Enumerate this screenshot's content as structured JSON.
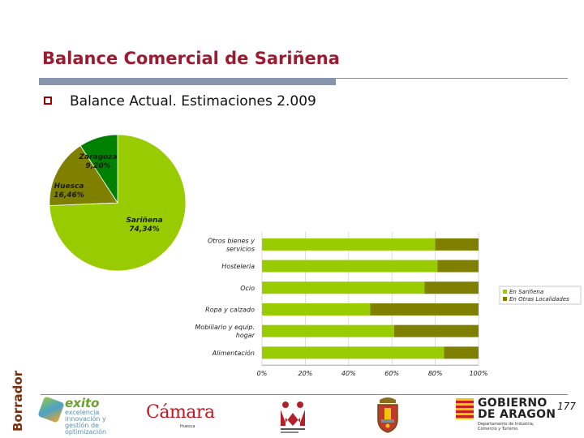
{
  "slide": {
    "title": "Balance Comercial de Sariñena",
    "bullet": "Balance Actual. Estimaciones 2.009",
    "page_number": "177",
    "draft_stamp": "Borrador"
  },
  "colors": {
    "title": "#9b1b30",
    "sarinena": "#99cc00",
    "huesca": "#808000",
    "zaragoza": "#008000",
    "otras": "#808000"
  },
  "chart_data": [
    {
      "type": "pie",
      "slices": [
        {
          "label": "Zaragoza",
          "value_label": "9,20%",
          "value": 9.2
        },
        {
          "label": "Huesca",
          "value_label": "16,46%",
          "value": 16.46
        },
        {
          "label": "Sariñena",
          "value_label": "74,34%",
          "value": 74.34
        }
      ]
    },
    {
      "type": "bar",
      "stacked": true,
      "orientation": "horizontal",
      "normalized": true,
      "categories": [
        "Otros bienes y servicios",
        "Hosteleria",
        "Ocio",
        "Ropa y calzado",
        "Mobiliario y equip. hogar",
        "Alimentación"
      ],
      "category_lines": [
        [
          "Otros bienes y",
          "servicios"
        ],
        [
          "Hosteleria"
        ],
        [
          "Ocio"
        ],
        [
          "Ropa y calzado"
        ],
        [
          "Mobiliario y equip.",
          "hogar"
        ],
        [
          "Alimentación"
        ]
      ],
      "series": [
        {
          "name": "En Sariñena",
          "values": [
            80,
            81,
            75,
            50,
            61,
            84
          ]
        },
        {
          "name": "En Otras Localidades",
          "values": [
            20,
            19,
            25,
            50,
            39,
            16
          ]
        }
      ],
      "xlim": [
        0,
        100
      ],
      "x_ticks": [
        "0%",
        "20%",
        "40%",
        "60%",
        "80%",
        "100%"
      ],
      "grid": true,
      "legend_position": "right"
    }
  ],
  "logos": {
    "exito_word": "exito",
    "exito_sub": "excelencia innovación y gestión de optimización",
    "camara_word": "Cámara",
    "camara_sub": "Huesca",
    "gobierno_line1": "GOBIERNO",
    "gobierno_line2": "DE ARAGON",
    "gobierno_sub": "Departamento de Industria, Comercio y Turismo"
  }
}
